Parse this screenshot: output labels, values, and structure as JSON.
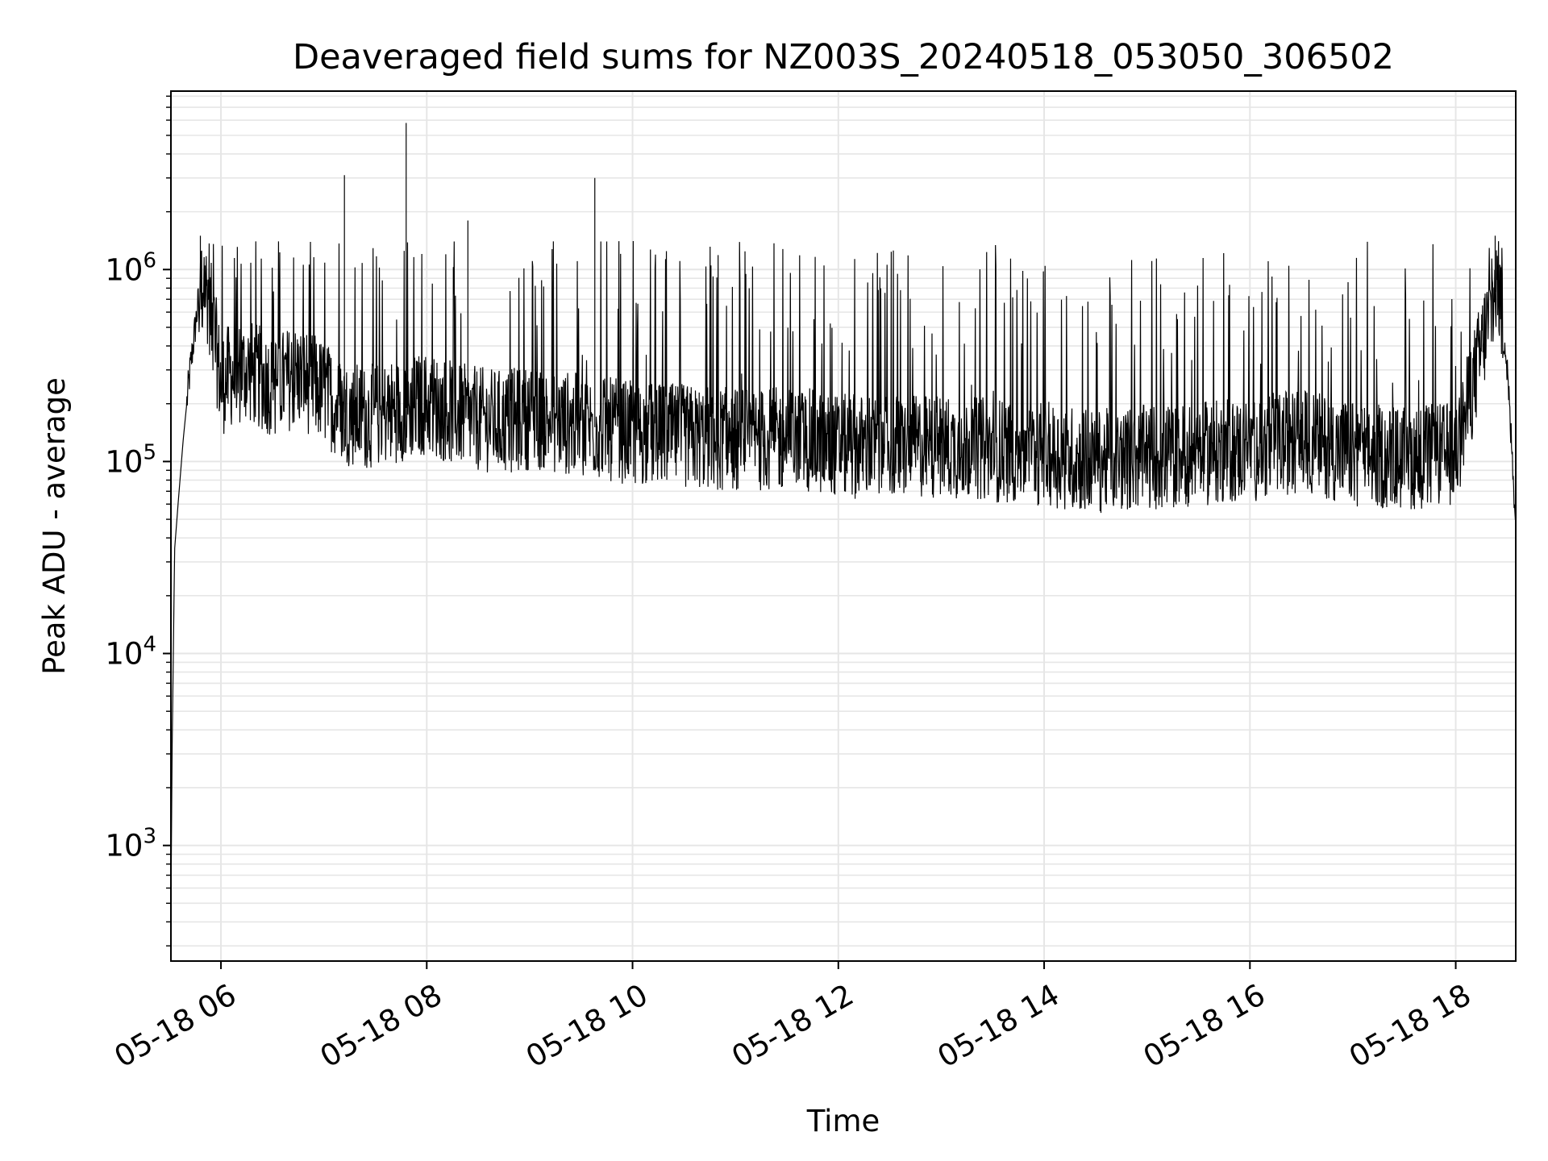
{
  "chart_data": {
    "type": "line",
    "title": "Deaveraged field sums for NZ003S_20240518_053050_306502",
    "xlabel": "Time",
    "ylabel": "Peak ADU - average",
    "x_axis": {
      "kind": "datetime",
      "range": [
        "2024-05-18 05:30:50",
        "2024-05-18 18:35"
      ],
      "ticks": [
        "05-18 06",
        "05-18 08",
        "05-18 10",
        "05-18 12",
        "05-18 14",
        "05-18 16",
        "05-18 18"
      ]
    },
    "y_axis": {
      "scale": "log",
      "range": [
        250,
        8500000
      ],
      "major_ticks": [
        {
          "value": 1000,
          "label_base": "10",
          "label_exp": "3"
        },
        {
          "value": 10000,
          "label_base": "10",
          "label_exp": "4"
        },
        {
          "value": 100000,
          "label_base": "10",
          "label_exp": "5"
        },
        {
          "value": 1000000,
          "label_base": "10",
          "label_exp": "6"
        }
      ]
    },
    "grid": true,
    "line_color": "#000000",
    "grid_color": "#e6e6e6",
    "series": [
      {
        "x": [
          "2024-05-18 05:30:50",
          "2024-05-18 05:31:30",
          "2024-05-18 05:33",
          "2024-05-18 05:35",
          "2024-05-18 05:38",
          "2024-05-18 05:42",
          "2024-05-18 05:47",
          "2024-05-18 05:50",
          "2024-05-18 05:53",
          "2024-05-18 05:57",
          "2024-05-18 06:00",
          "2024-05-18 06:05",
          "2024-05-18 06:15",
          "2024-05-18 06:30",
          "2024-05-18 06:45",
          "2024-05-18 07:00",
          "2024-05-18 07:12",
          "2024-05-18 07:25",
          "2024-05-18 07:48",
          "2024-05-18 08:00",
          "2024-05-18 08:24",
          "2024-05-18 08:45",
          "2024-05-18 09:00",
          "2024-05-18 09:40",
          "2024-05-18 10:00",
          "2024-05-18 11:00",
          "2024-05-18 11:40",
          "2024-05-18 12:00",
          "2024-05-18 12:30",
          "2024-05-18 13:00",
          "2024-05-18 14:00",
          "2024-05-18 14:30",
          "2024-05-18 15:00",
          "2024-05-18 15:30",
          "2024-05-18 16:00",
          "2024-05-18 16:30",
          "2024-05-18 17:00",
          "2024-05-18 17:20",
          "2024-05-18 17:40",
          "2024-05-18 18:00",
          "2024-05-18 18:10",
          "2024-05-18 18:20",
          "2024-05-18 18:25",
          "2024-05-18 18:30",
          "2024-05-18 18:35"
        ],
        "y": [
          450,
          3000,
          35000,
          60000,
          130000,
          300000,
          700000,
          900000,
          700000,
          400000,
          250000,
          280000,
          300000,
          250000,
          280000,
          230000,
          180000,
          170000,
          190000,
          200000,
          170000,
          160000,
          170000,
          150000,
          140000,
          130000,
          130000,
          120000,
          120000,
          120000,
          110000,
          100000,
          105000,
          110000,
          115000,
          130000,
          110000,
          105000,
          105000,
          110000,
          250000,
          600000,
          900000,
          300000,
          50000
        ],
        "spikes": [
          {
            "x": "2024-05-18 07:12",
            "y": 3100000
          },
          {
            "x": "2024-05-18 07:48",
            "y": 5800000
          },
          {
            "x": "2024-05-18 09:38",
            "y": 3000000
          },
          {
            "x": "2024-05-18 08:24",
            "y": 1800000
          },
          {
            "x": "2024-05-18 05:48",
            "y": 1500000
          },
          {
            "x": "2024-05-18 18:23",
            "y": 1500000
          }
        ]
      }
    ]
  }
}
